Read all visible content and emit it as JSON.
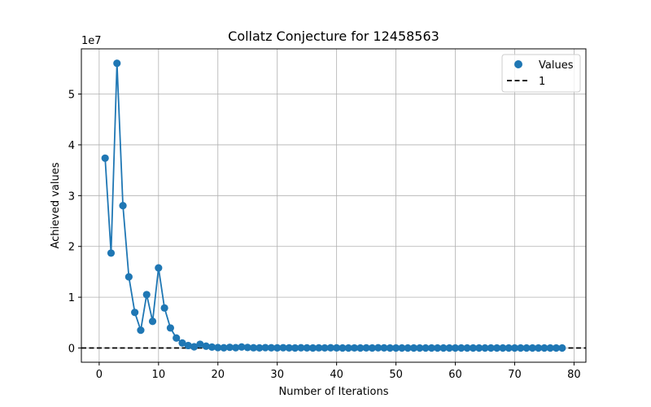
{
  "chart_data": {
    "type": "scatter",
    "title": "Collatz Conjecture for 12458563",
    "xlabel": "Number of Iterations",
    "ylabel": "Achieved values",
    "y_offset_label": "1e7",
    "xlim": [
      -3,
      82
    ],
    "ylim": [
      -2800000,
      58900000
    ],
    "x_ticks": [
      0,
      10,
      20,
      30,
      40,
      50,
      60,
      70,
      80
    ],
    "x_tick_labels": [
      "0",
      "10",
      "20",
      "30",
      "40",
      "50",
      "60",
      "70",
      "80"
    ],
    "y_ticks": [
      0,
      10000000,
      20000000,
      30000000,
      40000000,
      50000000
    ],
    "y_tick_labels": [
      "0",
      "1",
      "2",
      "3",
      "4",
      "5"
    ],
    "grid": true,
    "legend_position": "top-right",
    "series": [
      {
        "name": "Values",
        "style": "line-with-markers",
        "color": "#1f77b4",
        "x": [
          1,
          2,
          3,
          4,
          5,
          6,
          7,
          8,
          9,
          10,
          11,
          12,
          13,
          14,
          15,
          16,
          17,
          18,
          19,
          20,
          21,
          22,
          23,
          24,
          25,
          26,
          27,
          28,
          29,
          30,
          31,
          32,
          33,
          34,
          35,
          36,
          37,
          38,
          39,
          40,
          41,
          42,
          43,
          44,
          45,
          46,
          47,
          48,
          49,
          50,
          51,
          52,
          53,
          54,
          55,
          56,
          57,
          58,
          59,
          60,
          61,
          62,
          63,
          64,
          65,
          66,
          67,
          68,
          69,
          70,
          71,
          72,
          73,
          74,
          75,
          76,
          77,
          78
        ],
        "y": [
          37375690,
          18687845,
          56063536,
          28031768,
          14015884,
          7007942,
          3503971,
          10511914,
          5255957,
          15767872,
          7883936,
          3941968,
          1970984,
          985492,
          492746,
          246373,
          739120,
          369560,
          184780,
          92390,
          46195,
          138586,
          69293,
          207880,
          103940,
          51970,
          25985,
          77956,
          38978,
          19489,
          58468,
          29234,
          14617,
          43852,
          21926,
          10963,
          32890,
          16445,
          49336,
          24668,
          12334,
          6167,
          18502,
          9251,
          27754,
          13877,
          41632,
          20816,
          10408,
          5204,
          2602,
          1301,
          3904,
          1952,
          976,
          488,
          244,
          122,
          61,
          184,
          92,
          46,
          23,
          70,
          35,
          106,
          53,
          160,
          80,
          40,
          20,
          10,
          5,
          16,
          8,
          4,
          2,
          1
        ]
      },
      {
        "name": "1",
        "style": "dashed-hline",
        "color": "#000000",
        "y_value": 1
      }
    ]
  }
}
